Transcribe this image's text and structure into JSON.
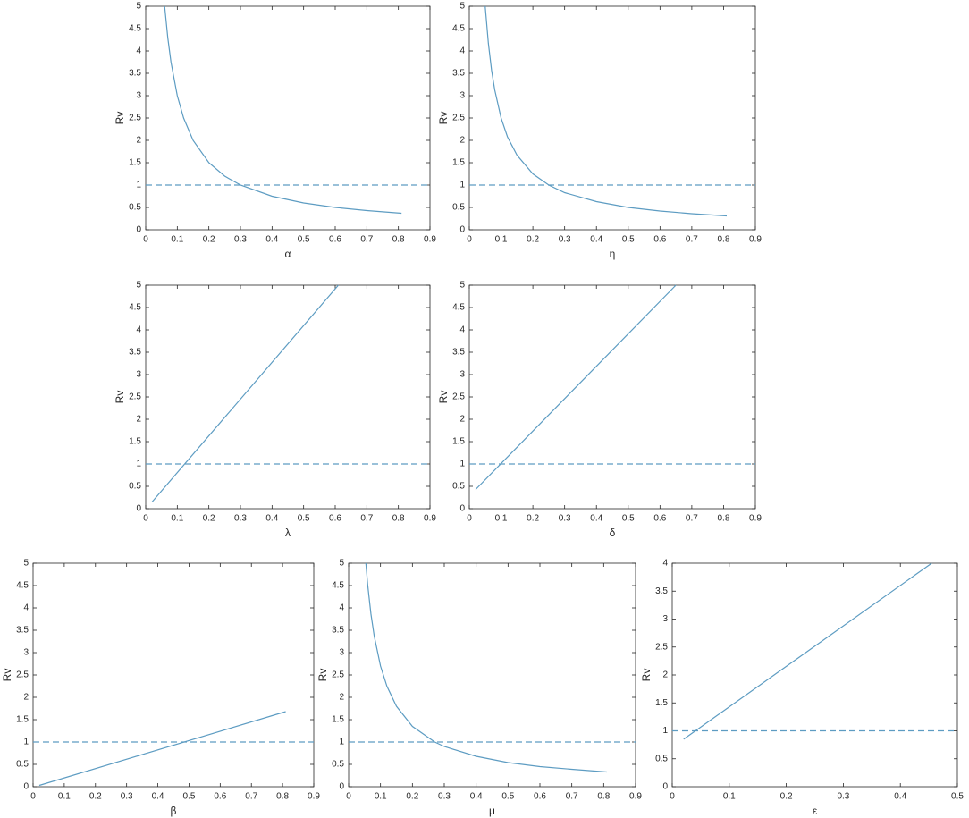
{
  "chart_data": [
    {
      "type": "line",
      "x_label": "α",
      "y_label": "Rv",
      "color": "#5d9cc2",
      "x": [
        0.06,
        0.07,
        0.08,
        0.1,
        0.12,
        0.15,
        0.2,
        0.25,
        0.3,
        0.4,
        0.5,
        0.6,
        0.7,
        0.81
      ],
      "values": [
        5,
        4.29,
        3.75,
        3,
        2.5,
        2,
        1.5,
        1.2,
        1,
        0.75,
        0.6,
        0.5,
        0.43,
        0.37
      ],
      "hline": 1,
      "hline_style": "dashed",
      "xlim": [
        0,
        0.9
      ],
      "ylim": [
        0,
        5
      ],
      "xticks": [
        0,
        0.1,
        0.2,
        0.3,
        0.4,
        0.5,
        0.6,
        0.7,
        0.8,
        0.9
      ],
      "yticks": [
        0,
        0.5,
        1,
        1.5,
        2,
        2.5,
        3,
        3.5,
        4,
        4.5,
        5
      ]
    },
    {
      "type": "line",
      "x_label": "η",
      "y_label": "Rv",
      "color": "#5d9cc2",
      "x": [
        0.05,
        0.06,
        0.07,
        0.08,
        0.1,
        0.12,
        0.15,
        0.2,
        0.25,
        0.3,
        0.4,
        0.5,
        0.6,
        0.7,
        0.81
      ],
      "values": [
        5,
        4.17,
        3.57,
        3.13,
        2.5,
        2.08,
        1.67,
        1.25,
        1,
        0.83,
        0.63,
        0.5,
        0.42,
        0.36,
        0.31
      ],
      "hline": 1,
      "hline_style": "dashed",
      "xlim": [
        0,
        0.9
      ],
      "ylim": [
        0,
        5
      ],
      "xticks": [
        0,
        0.1,
        0.2,
        0.3,
        0.4,
        0.5,
        0.6,
        0.7,
        0.8,
        0.9
      ],
      "yticks": [
        0,
        0.5,
        1,
        1.5,
        2,
        2.5,
        3,
        3.5,
        4,
        4.5,
        5
      ]
    },
    {
      "type": "line",
      "x_label": "λ",
      "y_label": "Rv",
      "color": "#5d9cc2",
      "x": [
        0.02,
        0.61
      ],
      "values": [
        0.15,
        5
      ],
      "hline": 1,
      "hline_style": "dashed",
      "xlim": [
        0,
        0.9
      ],
      "ylim": [
        0,
        5
      ],
      "xticks": [
        0,
        0.1,
        0.2,
        0.3,
        0.4,
        0.5,
        0.6,
        0.7,
        0.8,
        0.9
      ],
      "yticks": [
        0,
        0.5,
        1,
        1.5,
        2,
        2.5,
        3,
        3.5,
        4,
        4.5,
        5
      ]
    },
    {
      "type": "line",
      "x_label": "δ",
      "y_label": "Rv",
      "color": "#5d9cc2",
      "x": [
        0.02,
        0.65
      ],
      "values": [
        0.43,
        5
      ],
      "hline": 1,
      "hline_style": "dashed",
      "xlim": [
        0,
        0.9
      ],
      "ylim": [
        0,
        5
      ],
      "xticks": [
        0,
        0.1,
        0.2,
        0.3,
        0.4,
        0.5,
        0.6,
        0.7,
        0.8,
        0.9
      ],
      "yticks": [
        0,
        0.5,
        1,
        1.5,
        2,
        2.5,
        3,
        3.5,
        4,
        4.5,
        5
      ]
    },
    {
      "type": "line",
      "x_label": "β",
      "y_label": "Rv",
      "color": "#5d9cc2",
      "x": [
        0.02,
        0.81
      ],
      "values": [
        0.03,
        1.68
      ],
      "hline": 1,
      "hline_style": "dashed",
      "xlim": [
        0,
        0.9
      ],
      "ylim": [
        0,
        5
      ],
      "xticks": [
        0,
        0.1,
        0.2,
        0.3,
        0.4,
        0.5,
        0.6,
        0.7,
        0.8,
        0.9
      ],
      "yticks": [
        0,
        0.5,
        1,
        1.5,
        2,
        2.5,
        3,
        3.5,
        4,
        4.5,
        5
      ]
    },
    {
      "type": "line",
      "x_label": "μ",
      "y_label": "Rv",
      "color": "#5d9cc2",
      "x": [
        0.054,
        0.06,
        0.07,
        0.08,
        0.1,
        0.12,
        0.15,
        0.2,
        0.27,
        0.3,
        0.4,
        0.5,
        0.6,
        0.7,
        0.81
      ],
      "values": [
        5,
        4.5,
        3.86,
        3.38,
        2.7,
        2.25,
        1.8,
        1.35,
        1,
        0.9,
        0.68,
        0.54,
        0.45,
        0.39,
        0.33
      ],
      "hline": 1,
      "hline_style": "dashed",
      "xlim": [
        0,
        0.9
      ],
      "ylim": [
        0,
        5
      ],
      "xticks": [
        0,
        0.1,
        0.2,
        0.3,
        0.4,
        0.5,
        0.6,
        0.7,
        0.8,
        0.9
      ],
      "yticks": [
        0,
        0.5,
        1,
        1.5,
        2,
        2.5,
        3,
        3.5,
        4,
        4.5,
        5
      ]
    },
    {
      "type": "line",
      "x_label": "ε",
      "y_label": "Rv",
      "color": "#5d9cc2",
      "x": [
        0.02,
        0.455
      ],
      "values": [
        0.85,
        4
      ],
      "hline": 1,
      "hline_style": "dashed",
      "xlim": [
        0,
        0.5
      ],
      "ylim": [
        0,
        4
      ],
      "xticks": [
        0,
        0.1,
        0.2,
        0.3,
        0.4,
        0.5
      ],
      "yticks": [
        0,
        0.5,
        1,
        1.5,
        2,
        2.5,
        3,
        3.5,
        4
      ]
    }
  ]
}
